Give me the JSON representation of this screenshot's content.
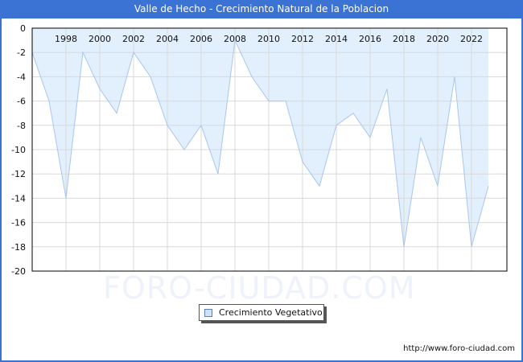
{
  "header": {
    "title": "Valle de Hecho - Crecimiento Natural de la Poblacion"
  },
  "watermark": "FORO-CIUDAD.COM",
  "legend": {
    "label": "Crecimiento Vegetativo"
  },
  "footer": {
    "url": "http://www.foro-ciudad.com"
  },
  "colors": {
    "titlebar": "#3b73d4",
    "fill": "#e2f0fd",
    "line": "#a9c5ee",
    "grid": "#d8d8d8"
  },
  "chart_data": {
    "type": "area",
    "title": "Valle de Hecho - Crecimiento Natural de la Poblacion",
    "xlabel": "",
    "ylabel": "",
    "x": [
      1996,
      1997,
      1998,
      1999,
      2000,
      2001,
      2002,
      2003,
      2004,
      2005,
      2006,
      2007,
      2008,
      2009,
      2010,
      2011,
      2012,
      2013,
      2014,
      2015,
      2016,
      2017,
      2018,
      2019,
      2020,
      2021,
      2022,
      2023
    ],
    "series": [
      {
        "name": "Crecimiento Vegetativo",
        "values": [
          -2,
          -6,
          -14,
          -2,
          -5,
          -7,
          -2,
          -4,
          -8,
          -10,
          -8,
          -12,
          -1,
          -4,
          -6,
          -6,
          -11,
          -13,
          -8,
          -7,
          -9,
          -5,
          -18,
          -9,
          -13,
          -4,
          -18,
          -13
        ]
      }
    ],
    "x_tick_labels": [
      "1998",
      "2000",
      "2002",
      "2004",
      "2006",
      "2008",
      "2010",
      "2012",
      "2014",
      "2016",
      "2018",
      "2020",
      "2022"
    ],
    "y_tick_labels": [
      "0",
      "-2",
      "-4",
      "-6",
      "-8",
      "-10",
      "-12",
      "-14",
      "-16",
      "-18",
      "-20"
    ],
    "ylim": [
      -20,
      0
    ],
    "grid": true,
    "legend_position": "bottom-center"
  }
}
